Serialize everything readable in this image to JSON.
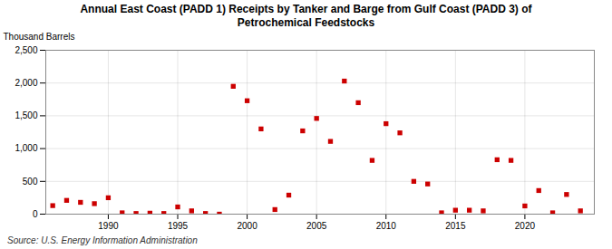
{
  "chart_data": {
    "type": "scatter",
    "title": "Annual East Coast (PADD 1) Receipts by Tanker and Barge from Gulf Coast (PADD 3) of\nPetrochemical Feedstocks",
    "ylabel": "Thousand Barrels",
    "source": "Source: U.S. Energy Information Administration",
    "x": [
      1986,
      1987,
      1988,
      1989,
      1990,
      1991,
      1992,
      1993,
      1994,
      1995,
      1996,
      1997,
      1998,
      1999,
      2000,
      2001,
      2002,
      2003,
      2004,
      2005,
      2006,
      2007,
      2008,
      2009,
      2010,
      2011,
      2012,
      2013,
      2014,
      2015,
      2016,
      2017,
      2018,
      2019,
      2020,
      2021,
      2022,
      2023,
      2024
    ],
    "values": [
      130,
      210,
      180,
      160,
      250,
      20,
      10,
      15,
      10,
      110,
      50,
      10,
      0,
      1950,
      1730,
      1300,
      70,
      290,
      1270,
      1460,
      1110,
      2030,
      1700,
      820,
      1380,
      1240,
      500,
      460,
      20,
      60,
      60,
      50,
      830,
      820,
      125,
      360,
      20,
      300,
      50
    ],
    "color": "#cc0000",
    "marker": "square",
    "xlim": [
      1985.5,
      2025
    ],
    "xticks": [
      1990,
      1995,
      2000,
      2005,
      2010,
      2015,
      2020
    ],
    "ylim": [
      0,
      2500
    ],
    "yticks": [
      0,
      500,
      {
        "value": 1000,
        "label": "1,000"
      },
      {
        "value": 1500,
        "label": "1,500"
      },
      {
        "value": 2000,
        "label": "2,000"
      },
      {
        "value": 2500,
        "label": "2,500"
      }
    ],
    "grid": true
  }
}
